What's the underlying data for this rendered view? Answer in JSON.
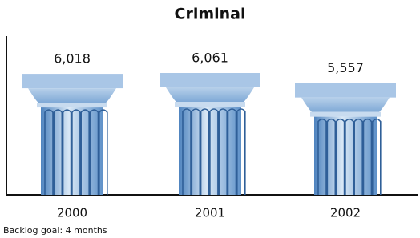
{
  "chart_data": {
    "type": "bar",
    "title": "Criminal",
    "categories": [
      "2000",
      "2001",
      "2002"
    ],
    "values": [
      6018,
      6061,
      5557
    ],
    "value_labels": [
      "6,018",
      "6,061",
      "5,557"
    ],
    "color": "#a9c6e6",
    "note": "Backlog goal: 4 months"
  }
}
